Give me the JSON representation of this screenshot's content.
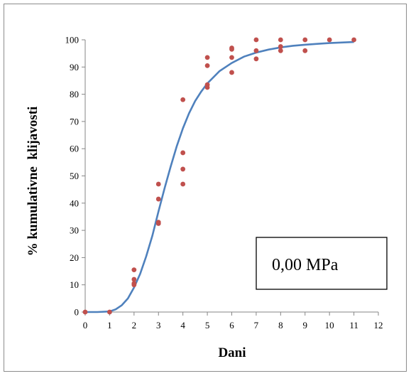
{
  "chart_data": {
    "type": "scatter",
    "title": "",
    "xlabel": "Dani",
    "ylabel": "% kumulativne  klijavosti",
    "xlim": [
      0,
      12
    ],
    "ylim": [
      0,
      100
    ],
    "x_ticks": [
      0,
      1,
      2,
      3,
      4,
      5,
      6,
      7,
      8,
      9,
      10,
      11,
      12
    ],
    "y_ticks": [
      0,
      10,
      20,
      30,
      40,
      50,
      60,
      70,
      80,
      90,
      100
    ],
    "grid": false,
    "legend": "none",
    "annotation": "0,00 MPa",
    "series": [
      {
        "kind": "points",
        "color": "#c0504d",
        "points": [
          [
            0,
            0
          ],
          [
            1,
            0
          ],
          [
            2,
            15.5
          ],
          [
            2,
            12
          ],
          [
            2,
            10.5
          ],
          [
            2,
            10
          ],
          [
            3,
            47
          ],
          [
            3,
            41.5
          ],
          [
            3,
            33
          ],
          [
            3,
            32.5
          ],
          [
            4,
            78
          ],
          [
            4,
            58.5
          ],
          [
            4,
            52.5
          ],
          [
            4,
            47
          ],
          [
            5,
            93.5
          ],
          [
            5,
            90.5
          ],
          [
            5,
            83.5
          ],
          [
            5,
            82.5
          ],
          [
            6,
            97
          ],
          [
            6,
            96.5
          ],
          [
            6,
            93.5
          ],
          [
            6,
            88
          ],
          [
            7,
            100
          ],
          [
            7,
            96
          ],
          [
            7,
            93
          ],
          [
            8,
            100
          ],
          [
            8,
            97.5
          ],
          [
            8,
            96
          ],
          [
            9,
            100
          ],
          [
            9,
            96
          ],
          [
            10,
            100
          ],
          [
            11,
            100
          ]
        ]
      },
      {
        "kind": "fit-curve",
        "color": "#4f81bd",
        "points": [
          [
            0,
            0
          ],
          [
            0.5,
            0
          ],
          [
            1,
            0.2
          ],
          [
            1.25,
            1
          ],
          [
            1.5,
            2.5
          ],
          [
            1.75,
            5
          ],
          [
            2,
            9
          ],
          [
            2.25,
            14
          ],
          [
            2.5,
            20.5
          ],
          [
            2.75,
            28
          ],
          [
            3,
            37
          ],
          [
            3.25,
            45.5
          ],
          [
            3.5,
            53.5
          ],
          [
            3.75,
            61
          ],
          [
            4,
            67.5
          ],
          [
            4.25,
            73
          ],
          [
            4.5,
            77.5
          ],
          [
            4.75,
            81
          ],
          [
            5,
            84
          ],
          [
            5.5,
            88.5
          ],
          [
            6,
            91.5
          ],
          [
            6.5,
            93.8
          ],
          [
            7,
            95.3
          ],
          [
            7.5,
            96.4
          ],
          [
            8,
            97.2
          ],
          [
            8.5,
            97.8
          ],
          [
            9,
            98.2
          ],
          [
            9.5,
            98.5
          ],
          [
            10,
            98.8
          ],
          [
            10.5,
            99
          ],
          [
            11,
            99.2
          ]
        ]
      }
    ]
  }
}
